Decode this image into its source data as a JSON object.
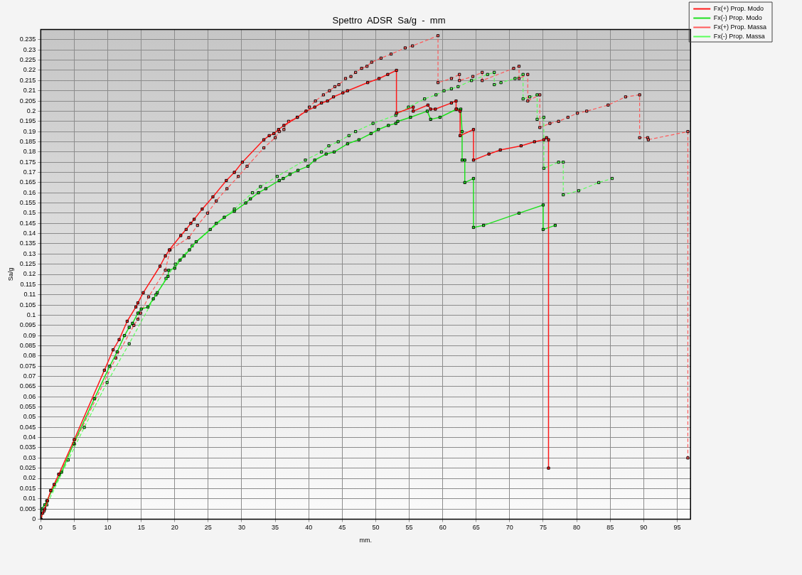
{
  "chart_data": {
    "type": "line",
    "title": "Spettro  ADSR  Sa/g  -  mm",
    "xlabel": "mm.",
    "ylabel": "Sa/g",
    "xlim": [
      0,
      97
    ],
    "xticks": [
      0,
      5,
      10,
      15,
      20,
      25,
      30,
      35,
      40,
      45,
      50,
      55,
      60,
      65,
      70,
      75,
      80,
      85,
      90,
      95
    ],
    "ylim": [
      0,
      0.24
    ],
    "yticks": [
      0,
      0.005,
      0.01,
      0.015,
      0.02,
      0.025,
      0.03,
      0.035,
      0.04,
      0.045,
      0.05,
      0.055,
      0.06,
      0.065,
      0.07,
      0.075,
      0.08,
      0.085,
      0.09,
      0.095,
      0.1,
      0.105,
      0.11,
      0.115,
      0.12,
      0.125,
      0.13,
      0.135,
      0.14,
      0.145,
      0.15,
      0.155,
      0.16,
      0.165,
      0.17,
      0.175,
      0.18,
      0.185,
      0.19,
      0.195,
      0.2,
      0.205,
      0.21,
      0.215,
      0.22,
      0.225,
      0.23,
      0.235
    ],
    "grid": true,
    "legend": "top right",
    "marker": "square",
    "series": [
      {
        "name": "Fx(+) Prop. Modo",
        "color": "#ff1a1a",
        "line_style": "solid",
        "x": [
          0,
          0.3,
          0.6,
          1.0,
          1.5,
          2.0,
          2.7,
          5.0,
          9.5,
          10.8,
          11.7,
          12.9,
          14.2,
          14.5,
          15.3,
          17.8,
          18.6,
          19.2,
          20.9,
          21.7,
          22.4,
          22.9,
          24.1,
          25.7,
          27.7,
          28.9,
          30.1,
          33.3,
          34.1,
          34.8,
          35.5,
          36.3,
          38.3,
          39.6,
          40.9,
          41.9,
          42.8,
          43.7,
          45.1,
          45.8,
          48.8,
          50.5,
          51.8,
          53.1,
          53.1,
          55.6,
          55.6,
          57.8,
          58.2,
          58.9,
          61.3,
          62.0,
          62.0,
          62.6,
          62.6,
          64.6,
          64.6,
          66.9,
          68.6,
          71.7,
          73.7,
          75.1,
          75.5,
          75.8,
          75.8
        ],
        "values": [
          0,
          0.003,
          0.005,
          0.009,
          0.014,
          0.017,
          0.022,
          0.039,
          0.073,
          0.083,
          0.088,
          0.097,
          0.104,
          0.106,
          0.111,
          0.124,
          0.129,
          0.132,
          0.139,
          0.142,
          0.145,
          0.147,
          0.152,
          0.158,
          0.166,
          0.17,
          0.175,
          0.186,
          0.188,
          0.189,
          0.191,
          0.193,
          0.197,
          0.2,
          0.202,
          0.204,
          0.205,
          0.207,
          0.209,
          0.21,
          0.214,
          0.216,
          0.218,
          0.22,
          0.199,
          0.202,
          0.2,
          0.203,
          0.201,
          0.201,
          0.204,
          0.205,
          0.201,
          0.2,
          0.188,
          0.191,
          0.176,
          0.179,
          0.181,
          0.183,
          0.185,
          0.186,
          0.187,
          0.186,
          0.025
        ]
      },
      {
        "name": "Fx(-) Prop. Modo",
        "color": "#1fe01f",
        "line_style": "solid",
        "x": [
          0,
          0.1,
          0.6,
          0.9,
          3.1,
          4.9,
          8.0,
          10.3,
          11.4,
          12.5,
          13.2,
          13.7,
          14.5,
          15.0,
          16.0,
          16.8,
          17.4,
          19.0,
          19.1,
          20.0,
          20.8,
          21.4,
          22.2,
          23.2,
          25.3,
          26.2,
          27.4,
          28.9,
          30.6,
          31.3,
          32.5,
          33.6,
          35.6,
          36.2,
          37.2,
          38.4,
          39.9,
          40.9,
          42.6,
          43.8,
          45.8,
          47.5,
          49.3,
          50.4,
          51.9,
          53.0,
          53.3,
          55.2,
          57.7,
          58.2,
          59.6,
          62.1,
          62.7,
          62.9,
          62.9,
          63.3,
          63.3,
          64.6,
          64.6,
          66.1,
          71.4,
          75.0,
          75.0,
          76.8
        ],
        "values": [
          0,
          0.005,
          0.007,
          0.009,
          0.023,
          0.037,
          0.059,
          0.075,
          0.082,
          0.09,
          0.094,
          0.096,
          0.101,
          0.103,
          0.104,
          0.108,
          0.111,
          0.119,
          0.122,
          0.123,
          0.127,
          0.129,
          0.132,
          0.136,
          0.142,
          0.145,
          0.148,
          0.151,
          0.155,
          0.157,
          0.16,
          0.162,
          0.166,
          0.167,
          0.169,
          0.171,
          0.173,
          0.176,
          0.179,
          0.18,
          0.184,
          0.186,
          0.189,
          0.191,
          0.193,
          0.194,
          0.195,
          0.197,
          0.2,
          0.196,
          0.197,
          0.201,
          0.201,
          0.19,
          0.176,
          0.176,
          0.165,
          0.167,
          0.143,
          0.144,
          0.15,
          0.154,
          0.142,
          0.144
        ]
      },
      {
        "name": "Fx(+) Prop. Massa",
        "color": "#ff5a5a",
        "line_style": "dashed",
        "x": [
          0,
          0.5,
          1.5,
          2.7,
          5.0,
          11.2,
          13.9,
          14.5,
          14.9,
          16.1,
          18.6,
          19.3,
          22.1,
          23.4,
          24.9,
          26.2,
          27.8,
          29.5,
          30.8,
          33.3,
          35.0,
          35.6,
          36.3,
          37.0,
          38.3,
          40.1,
          41.0,
          42.2,
          43.1,
          43.9,
          44.5,
          45.5,
          46.3,
          47.0,
          47.9,
          48.7,
          49.4,
          50.8,
          52.3,
          54.4,
          55.5,
          59.3,
          59.3,
          61.3,
          62.5,
          62.5,
          64.5,
          65.9,
          65.9,
          70.6,
          71.4,
          71.4,
          72.7,
          72.7,
          74.5,
          74.5,
          76.0,
          77.3,
          78.7,
          80.1,
          81.5,
          84.7,
          87.3,
          89.4,
          89.4,
          90.6,
          90.7,
          96.6,
          96.6
        ],
        "values": [
          0,
          0.004,
          0.014,
          0.022,
          0.037,
          0.079,
          0.095,
          0.098,
          0.101,
          0.109,
          0.122,
          0.132,
          0.138,
          0.144,
          0.15,
          0.156,
          0.162,
          0.168,
          0.173,
          0.182,
          0.187,
          0.19,
          0.191,
          0.195,
          0.197,
          0.202,
          0.205,
          0.208,
          0.21,
          0.212,
          0.213,
          0.216,
          0.217,
          0.219,
          0.221,
          0.222,
          0.224,
          0.226,
          0.228,
          0.231,
          0.232,
          0.237,
          0.214,
          0.216,
          0.218,
          0.215,
          0.217,
          0.219,
          0.215,
          0.221,
          0.222,
          0.216,
          0.218,
          0.205,
          0.208,
          0.192,
          0.194,
          0.195,
          0.197,
          0.199,
          0.2,
          0.203,
          0.207,
          0.208,
          0.187,
          0.187,
          0.186,
          0.19,
          0.03
        ]
      },
      {
        "name": "Fx(-) Prop. Massa",
        "color": "#5aff5a",
        "line_style": "dashed",
        "x": [
          0,
          0.9,
          4.1,
          6.5,
          9.9,
          13.2,
          17.2,
          18.7,
          20.1,
          22.6,
          28.9,
          31.6,
          32.8,
          35.3,
          39.5,
          41.9,
          43.0,
          44.4,
          46.0,
          47.0,
          49.6,
          53.0,
          54.9,
          57.3,
          59.0,
          60.2,
          61.3,
          62.3,
          64.3,
          66.7,
          67.7,
          67.7,
          68.7,
          70.8,
          72.0,
          72.0,
          73.0,
          74.1,
          74.1,
          75.1,
          75.1,
          77.3,
          78.0,
          78.0,
          80.3,
          83.3,
          85.3
        ],
        "values": [
          0,
          0.007,
          0.029,
          0.045,
          0.067,
          0.086,
          0.11,
          0.118,
          0.125,
          0.134,
          0.152,
          0.16,
          0.163,
          0.168,
          0.176,
          0.18,
          0.183,
          0.185,
          0.188,
          0.19,
          0.194,
          0.198,
          0.202,
          0.206,
          0.208,
          0.21,
          0.211,
          0.212,
          0.215,
          0.218,
          0.219,
          0.213,
          0.214,
          0.216,
          0.218,
          0.206,
          0.207,
          0.208,
          0.196,
          0.197,
          0.172,
          0.175,
          0.175,
          0.159,
          0.161,
          0.165,
          0.167
        ]
      }
    ]
  }
}
